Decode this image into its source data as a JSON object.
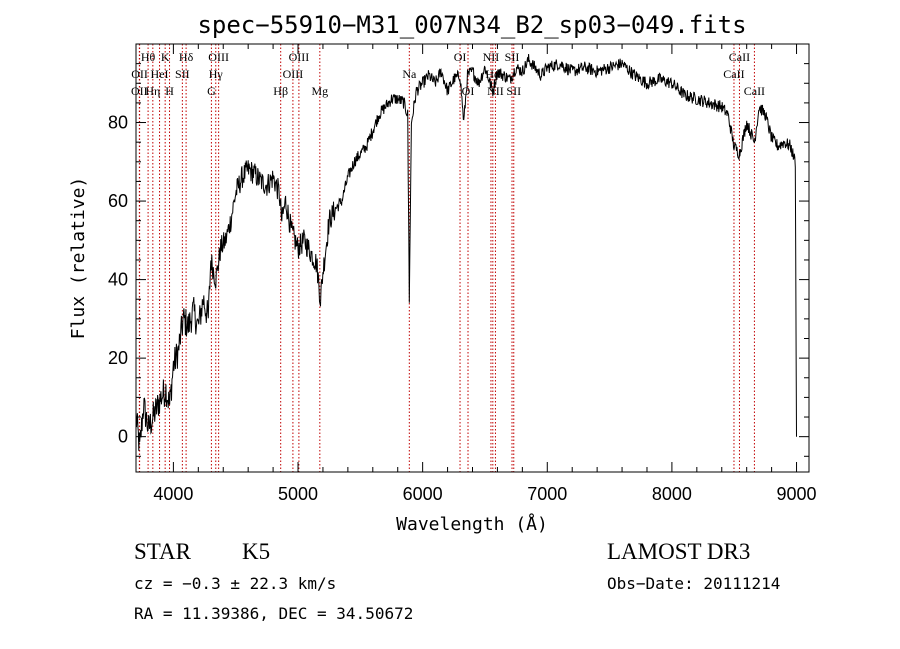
{
  "chart_data": {
    "type": "line",
    "title": "spec−55910−M31_007N34_B2_sp03−049.fits",
    "xlabel": "Wavelength (Å)",
    "ylabel": "Flux (relative)",
    "xlim": [
      3700,
      9100
    ],
    "ylim": [
      -9,
      100
    ],
    "xticks": [
      4000,
      5000,
      6000,
      7000,
      8000,
      9000
    ],
    "yticks": [
      0,
      20,
      40,
      60,
      80
    ],
    "grid": false,
    "series": [
      {
        "name": "flux",
        "anchors": [
          [
            3700,
            5
          ],
          [
            3730,
            -3
          ],
          [
            3760,
            8
          ],
          [
            3800,
            2
          ],
          [
            3850,
            6
          ],
          [
            3900,
            10
          ],
          [
            3940,
            12
          ],
          [
            3970,
            8
          ],
          [
            4000,
            18
          ],
          [
            4040,
            22
          ],
          [
            4080,
            30
          ],
          [
            4120,
            28
          ],
          [
            4160,
            32
          ],
          [
            4200,
            28
          ],
          [
            4240,
            35
          ],
          [
            4280,
            30
          ],
          [
            4300,
            45
          ],
          [
            4340,
            40
          ],
          [
            4380,
            48
          ],
          [
            4420,
            50
          ],
          [
            4460,
            55
          ],
          [
            4500,
            62
          ],
          [
            4550,
            66
          ],
          [
            4600,
            68
          ],
          [
            4650,
            67
          ],
          [
            4700,
            65
          ],
          [
            4750,
            64
          ],
          [
            4800,
            66
          ],
          [
            4850,
            62
          ],
          [
            4870,
            55
          ],
          [
            4900,
            60
          ],
          [
            4950,
            52
          ],
          [
            5000,
            48
          ],
          [
            5050,
            50
          ],
          [
            5100,
            47
          ],
          [
            5150,
            44
          ],
          [
            5180,
            35
          ],
          [
            5200,
            42
          ],
          [
            5250,
            55
          ],
          [
            5300,
            58
          ],
          [
            5350,
            60
          ],
          [
            5400,
            66
          ],
          [
            5450,
            70
          ],
          [
            5500,
            72
          ],
          [
            5550,
            74
          ],
          [
            5600,
            78
          ],
          [
            5650,
            82
          ],
          [
            5700,
            84
          ],
          [
            5750,
            86
          ],
          [
            5800,
            86
          ],
          [
            5850,
            85
          ],
          [
            5880,
            82
          ],
          [
            5893,
            35
          ],
          [
            5910,
            80
          ],
          [
            5950,
            88
          ],
          [
            6000,
            90
          ],
          [
            6050,
            92
          ],
          [
            6100,
            90
          ],
          [
            6150,
            93
          ],
          [
            6200,
            88
          ],
          [
            6250,
            91
          ],
          [
            6300,
            92
          ],
          [
            6330,
            80
          ],
          [
            6360,
            92
          ],
          [
            6400,
            93
          ],
          [
            6450,
            90
          ],
          [
            6500,
            94
          ],
          [
            6563,
            88
          ],
          [
            6600,
            93
          ],
          [
            6650,
            92
          ],
          [
            6700,
            91
          ],
          [
            6750,
            94
          ],
          [
            6800,
            93
          ],
          [
            6850,
            96
          ],
          [
            6900,
            94
          ],
          [
            6950,
            92
          ],
          [
            7000,
            94
          ],
          [
            7100,
            95
          ],
          [
            7200,
            93
          ],
          [
            7300,
            94
          ],
          [
            7400,
            93
          ],
          [
            7500,
            94
          ],
          [
            7600,
            95
          ],
          [
            7700,
            92
          ],
          [
            7800,
            90
          ],
          [
            7900,
            91
          ],
          [
            8000,
            90
          ],
          [
            8100,
            87
          ],
          [
            8200,
            86
          ],
          [
            8300,
            85
          ],
          [
            8400,
            84
          ],
          [
            8450,
            82
          ],
          [
            8498,
            74
          ],
          [
            8542,
            72
          ],
          [
            8600,
            80
          ],
          [
            8662,
            75
          ],
          [
            8700,
            84
          ],
          [
            8750,
            82
          ],
          [
            8800,
            76
          ],
          [
            8850,
            74
          ],
          [
            8900,
            75
          ],
          [
            8950,
            74
          ],
          [
            8990,
            70
          ],
          [
            9000,
            0
          ]
        ]
      }
    ],
    "emission_lines": [
      {
        "name": "Hθ",
        "wavelength": 3797,
        "row": 1
      },
      {
        "name": "OII",
        "wavelength": 3727,
        "row": 3
      },
      {
        "name": "OII",
        "wavelength": 3729,
        "row": 2
      },
      {
        "name": "Hη",
        "wavelength": 3835,
        "row": 3
      },
      {
        "name": "HeI",
        "wavelength": 3889,
        "row": 2
      },
      {
        "name": "K",
        "wavelength": 3934,
        "row": 1
      },
      {
        "name": "H",
        "wavelength": 3969,
        "row": 3
      },
      {
        "name": "SII",
        "wavelength": 4072,
        "row": 2
      },
      {
        "name": "Hδ",
        "wavelength": 4102,
        "row": 1
      },
      {
        "name": "OIII",
        "wavelength": 4363,
        "row": 1
      },
      {
        "name": "Hγ",
        "wavelength": 4340,
        "row": 2
      },
      {
        "name": "G",
        "wavelength": 4305,
        "row": 3
      },
      {
        "name": "Hβ",
        "wavelength": 4861,
        "row": 3
      },
      {
        "name": "OIII",
        "wavelength": 5007,
        "row": 1
      },
      {
        "name": "OIII",
        "wavelength": 4959,
        "row": 2
      },
      {
        "name": "Mg",
        "wavelength": 5175,
        "row": 3
      },
      {
        "name": "Na",
        "wavelength": 5893,
        "row": 2
      },
      {
        "name": "OI",
        "wavelength": 6300,
        "row": 1
      },
      {
        "name": "OI",
        "wavelength": 6364,
        "row": 3
      },
      {
        "name": "NII",
        "wavelength": 6548,
        "row": 1
      },
      {
        "name": "Hα",
        "wavelength": 6563,
        "row": 2
      },
      {
        "name": "NII",
        "wavelength": 6584,
        "row": 3
      },
      {
        "name": "SII",
        "wavelength": 6717,
        "row": 1
      },
      {
        "name": "SII",
        "wavelength": 6731,
        "row": 3
      },
      {
        "name": "CaII",
        "wavelength": 8498,
        "row": 2
      },
      {
        "name": "CaII",
        "wavelength": 8542,
        "row": 1
      },
      {
        "name": "CaII",
        "wavelength": 8662,
        "row": 3
      }
    ],
    "colors": {
      "spectrum": "#000000",
      "line_markers": "#c00000",
      "axes": "#000000"
    }
  },
  "footer": {
    "object_class": "STAR",
    "subclass": "K5",
    "survey": "LAMOST DR3",
    "redshift": "cz = −0.3 ± 22.3 km/s",
    "obs_date": "Obs−Date: 20111214",
    "coords": "RA =  11.39386, DEC =  34.50672"
  }
}
